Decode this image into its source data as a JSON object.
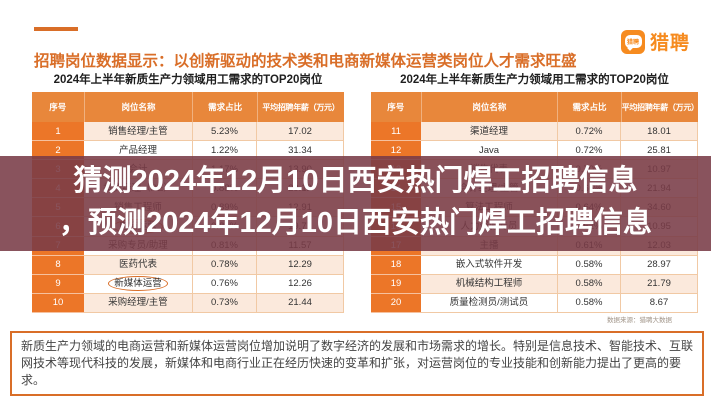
{
  "header": {
    "headline": "招聘岗位数据显示：以创新驱动的技术类和电商新媒体运营类岗位人才需求旺盛",
    "logo": {
      "text": "猎聘",
      "badge_text": "猎聘"
    }
  },
  "chart_data": [
    {
      "type": "table",
      "title": "2024年上半年新质生产力领域用工需求的TOP20岗位",
      "columns": [
        "序号",
        "岗位名称",
        "需求占比",
        "平均招聘年薪（万元）"
      ],
      "rows": [
        {
          "rank": "1",
          "name": "销售经理/主管",
          "share": "5.23%",
          "salary": "17.02",
          "circled": false
        },
        {
          "rank": "2",
          "name": "产品经理",
          "share": "1.22%",
          "salary": "31.34",
          "circled": false
        },
        {
          "rank": "3",
          "name": "会计",
          "share": "1.17%",
          "salary": "13.90",
          "circled": false
        },
        {
          "rank": "4",
          "name": "投资经理（PE）",
          "share": "0.88%",
          "salary": "29.12",
          "circled": false
        },
        {
          "rank": "5",
          "name": "销售工程师",
          "share": "0.89%",
          "salary": "12.91",
          "circled": false
        },
        {
          "rank": "6",
          "name": "电商运营",
          "share": "0.84%",
          "salary": "19.77",
          "circled": true
        },
        {
          "rank": "7",
          "name": "采购专员/助理",
          "share": "0.81%",
          "salary": "11.57",
          "circled": false
        },
        {
          "rank": "8",
          "name": "医药代表",
          "share": "0.78%",
          "salary": "12.29",
          "circled": false
        },
        {
          "rank": "9",
          "name": "新媒体运营",
          "share": "0.76%",
          "salary": "12.26",
          "circled": true
        },
        {
          "rank": "10",
          "name": "采购经理/主管",
          "share": "0.73%",
          "salary": "21.44",
          "circled": false
        }
      ]
    },
    {
      "type": "table",
      "title": "2024年上半年新质生产力领域用工需求的TOP20岗位",
      "columns": [
        "序号",
        "岗位名称",
        "需求占比",
        "平均招聘年薪（万元）"
      ],
      "rows": [
        {
          "rank": "11",
          "name": "渠道经理",
          "share": "0.72%",
          "salary": "18.01",
          "circled": false
        },
        {
          "rank": "12",
          "name": "Java",
          "share": "0.72%",
          "salary": "25.81",
          "circled": false
        },
        {
          "rank": "13",
          "name": "销售代表",
          "share": "0.70%",
          "salary": "10.97",
          "circled": false
        },
        {
          "rank": "14",
          "name": "会计经理/主管",
          "share": "0.66%",
          "salary": "21.94",
          "circled": false
        },
        {
          "rank": "15",
          "name": "算法工程师",
          "share": "0.64%",
          "salary": "34.60",
          "circled": false
        },
        {
          "rank": "16",
          "name": "人力资源专员",
          "share": "0.62%",
          "salary": "10.95",
          "circled": false
        },
        {
          "rank": "17",
          "name": "主播",
          "share": "0.61%",
          "salary": "12.03",
          "circled": false
        },
        {
          "rank": "18",
          "name": "嵌入式软件开发",
          "share": "0.58%",
          "salary": "28.97",
          "circled": false
        },
        {
          "rank": "19",
          "name": "机械结构工程师",
          "share": "0.58%",
          "salary": "21.79",
          "circled": false
        },
        {
          "rank": "20",
          "name": "质量检测员/测试员",
          "share": "0.58%",
          "salary": "8.67",
          "circled": false
        }
      ],
      "source_note": "数据来源：猎聘大数据"
    }
  ],
  "overlay": {
    "line1": "猜测2024年12月10日西安热门焊工招聘信息",
    "line2": "，预测2024年12月10日西安热门焊工招聘信息"
  },
  "summary": {
    "text": "新质生产力领域的电商运营和新媒体运营岗位增加说明了数字经济的发展和市场需求的增长。特别是信息技术、智能技术、互联网技术等现代科技的发展，新媒体和电商行业正在经历快速的变革和扩张，对运营岗位的专业技能和创新能力提出了更高的要求。"
  },
  "colors": {
    "accent": "#D96E28",
    "headerBg": "#E8873B",
    "rankBg": "#EC7628",
    "rowAlt": "#FBE9DC",
    "gridLine": "#F1C9A4",
    "overlayBg": "rgba(121,59,71,0.88)",
    "logoOrange": "#F68B1F",
    "titleText": "#1F1F1F",
    "noteText": "#444444"
  }
}
